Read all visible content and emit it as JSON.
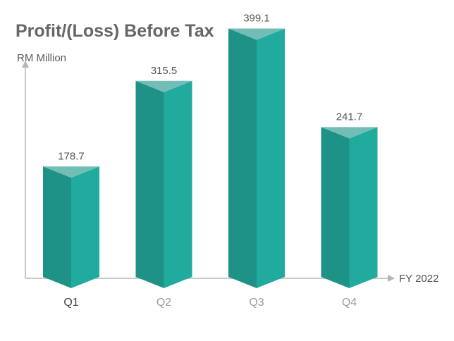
{
  "chart_data": {
    "type": "bar",
    "title": "Profit/(Loss) Before Tax",
    "ylabel": "RM Million",
    "xlabel": "FY 2022",
    "categories": [
      "Q1",
      "Q2",
      "Q3",
      "Q4"
    ],
    "values": [
      178.7,
      315.5,
      399.1,
      241.7
    ],
    "value_labels": [
      "178.7",
      "315.5",
      "399.1",
      "241.7"
    ],
    "ylim": [
      0,
      420
    ],
    "grid": false,
    "legend": "none",
    "colors": {
      "bar_left_face": "#1e9286",
      "bar_right_face": "#20ab9e",
      "bar_top_face": "#72bdb6",
      "axis": "#b5b5b5",
      "tick_active": "#444444",
      "tick_muted": "#9a9a9a"
    }
  }
}
